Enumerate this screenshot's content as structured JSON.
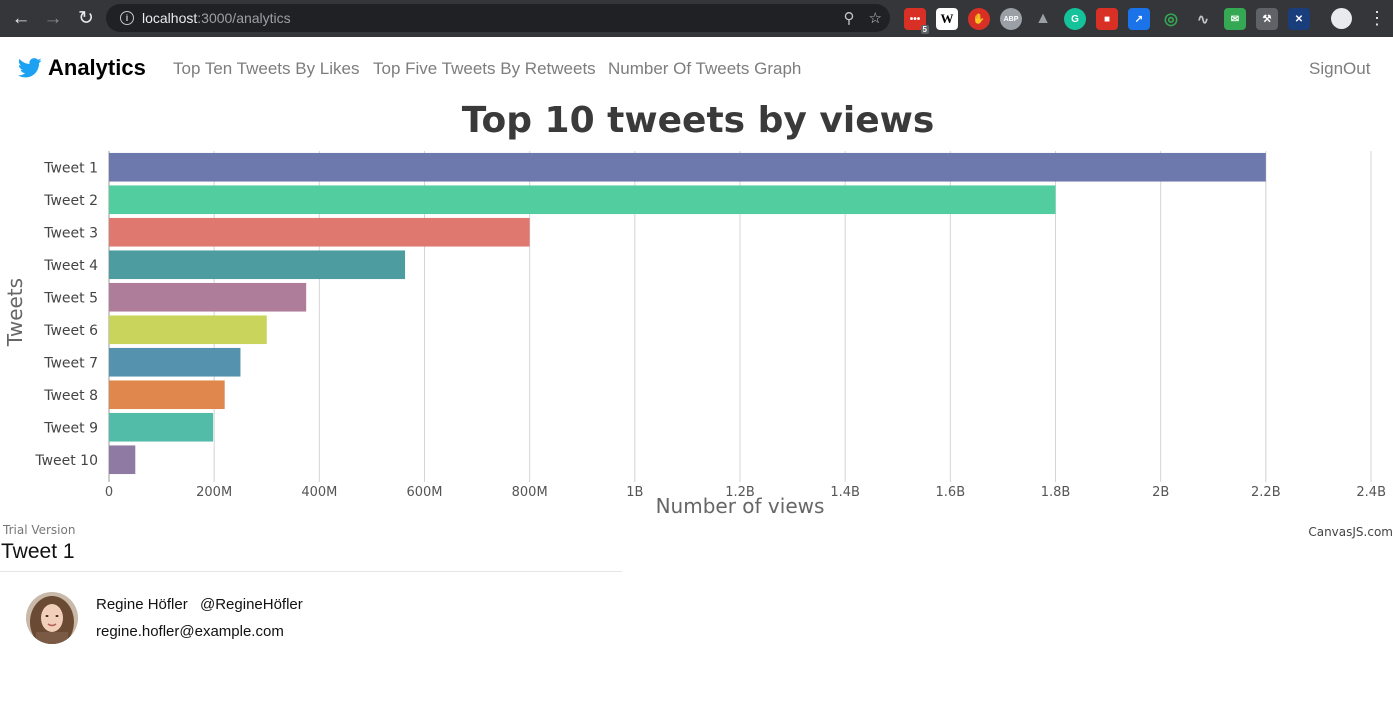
{
  "browser": {
    "url_host": "localhost",
    "url_rest": ":3000/analytics",
    "extension_badge": "5"
  },
  "navbar": {
    "brand": "Analytics",
    "links": [
      "Top Ten Tweets By Likes",
      "Top Five Tweets By Retweets",
      "Number Of Tweets Graph"
    ],
    "signout": "SignOut"
  },
  "chart_data": {
    "type": "bar",
    "orientation": "horizontal",
    "title": "Top 10 tweets by views",
    "xlabel": "Number of views",
    "ylabel": "Tweets",
    "categories": [
      "Tweet 1",
      "Tweet 2",
      "Tweet 3",
      "Tweet 4",
      "Tweet 5",
      "Tweet 6",
      "Tweet 7",
      "Tweet 8",
      "Tweet 9",
      "Tweet 10"
    ],
    "values": [
      2200000000,
      1800000000,
      800000000,
      563000000,
      375000000,
      300000000,
      250000000,
      220000000,
      198000000,
      50000000
    ],
    "colors": [
      "#6d78ad",
      "#51cda0",
      "#df7970",
      "#4c9ca0",
      "#ae7d99",
      "#c9d45c",
      "#5592ad",
      "#df874d",
      "#52bca8",
      "#8e7aa3"
    ],
    "xlim": [
      0,
      2400000000
    ],
    "xticks": [
      "0",
      "200M",
      "400M",
      "600M",
      "800M",
      "1B",
      "1.2B",
      "1.4B",
      "1.6B",
      "1.8B",
      "2B",
      "2.2B",
      "2.4B"
    ],
    "grid": true
  },
  "footer": {
    "trial": "Trial Version",
    "credit": "CanvasJS.com"
  },
  "tweet": {
    "heading": "Tweet 1",
    "name": "Regine Höfler",
    "handle": "@RegineHöfler",
    "email": "regine.hofler@example.com"
  }
}
